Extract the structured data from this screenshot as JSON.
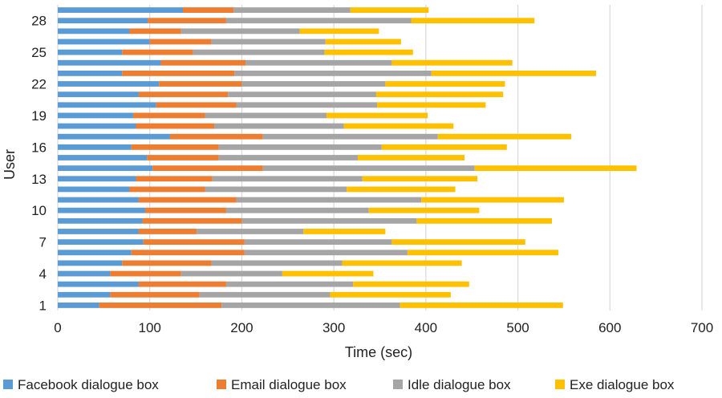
{
  "chart_data": {
    "type": "bar",
    "orientation": "horizontal",
    "stacked": true,
    "xlabel": "Time (sec)",
    "ylabel": "User",
    "xlim": [
      0,
      700
    ],
    "x_ticks": [
      0,
      100,
      200,
      300,
      400,
      500,
      600,
      700
    ],
    "categories": [
      "1",
      "2",
      "3",
      "4",
      "5",
      "6",
      "7",
      "8",
      "9",
      "10",
      "11",
      "12",
      "13",
      "14",
      "15",
      "16",
      "17",
      "18",
      "19",
      "20",
      "21",
      "22",
      "23",
      "24",
      "25",
      "26",
      "27",
      "28",
      "29"
    ],
    "y_tick_labels_shown": [
      "1",
      "4",
      "7",
      "10",
      "13",
      "16",
      "19",
      "22",
      "25",
      "28"
    ],
    "grid": "vertical",
    "legend_position": "bottom",
    "series": [
      {
        "name": "Facebook dialogue box",
        "color": "#5B9BD5",
        "values": [
          45,
          57,
          88,
          57,
          70,
          80,
          93,
          88,
          92,
          95,
          88,
          78,
          85,
          103,
          97,
          80,
          122,
          85,
          82,
          107,
          88,
          110,
          70,
          112,
          70,
          100,
          78,
          98,
          136
        ]
      },
      {
        "name": "Email dialogue box",
        "color": "#ED7D31",
        "values": [
          133,
          97,
          95,
          77,
          97,
          123,
          110,
          63,
          108,
          88,
          106,
          82,
          83,
          120,
          78,
          95,
          101,
          85,
          78,
          87,
          97,
          90,
          122,
          92,
          77,
          67,
          56,
          85,
          55
        ]
      },
      {
        "name": "Idle dialogue box",
        "color": "#A5A5A5",
        "values": [
          194,
          142,
          138,
          110,
          142,
          177,
          160,
          116,
          190,
          155,
          201,
          154,
          163,
          230,
          151,
          177,
          190,
          141,
          132,
          153,
          161,
          156,
          214,
          159,
          143,
          124,
          129,
          201,
          127
        ]
      },
      {
        "name": "Exe dialogue box",
        "color": "#FFC000",
        "values": [
          177,
          131,
          126,
          99,
          130,
          164,
          145,
          89,
          147,
          120,
          155,
          118,
          125,
          176,
          116,
          136,
          145,
          119,
          110,
          118,
          138,
          130,
          179,
          131,
          96,
          82,
          86,
          134,
          85
        ]
      }
    ]
  }
}
